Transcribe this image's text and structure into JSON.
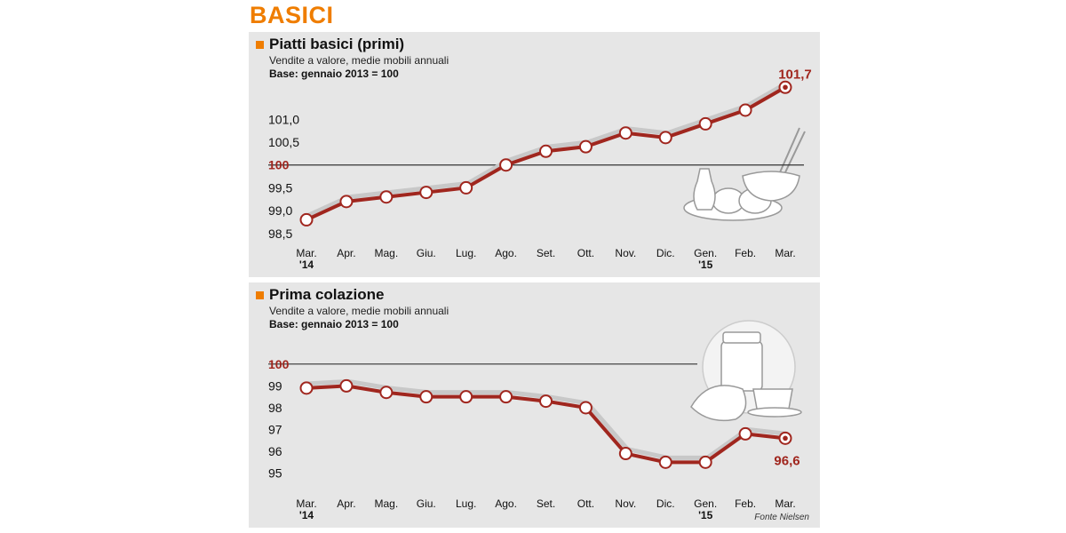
{
  "header": {
    "section": "BASICI"
  },
  "colors": {
    "accent": "#ef7d00",
    "line": "#a0261e",
    "highlight": "#a0261e",
    "panel_bg": "#e6e6e6",
    "shadow_line": "#c8c8c8"
  },
  "source": "Fonte Nielsen",
  "chart_data": [
    {
      "type": "line",
      "title": "Piatti basici (primi)",
      "subtitle": "Vendite a valore, medie mobili annuali",
      "note": "Base: gennaio 2013 = 100",
      "categories": [
        "Mar.",
        "Apr.",
        "Mag.",
        "Giu.",
        "Lug.",
        "Ago.",
        "Set.",
        "Ott.",
        "Nov.",
        "Dic.",
        "Gen.",
        "Feb.",
        "Mar."
      ],
      "year_labels": [
        "'14",
        "",
        "",
        "",
        "",
        "",
        "",
        "",
        "",
        "",
        "'15",
        "",
        ""
      ],
      "values": [
        98.8,
        99.2,
        99.3,
        99.4,
        99.5,
        100.0,
        100.3,
        100.4,
        100.7,
        100.6,
        100.9,
        101.2,
        101.7
      ],
      "ylim": [
        98.4,
        101.9
      ],
      "yticks": [
        {
          "value": 98.5,
          "label": "98,5"
        },
        {
          "value": 99.0,
          "label": "99,0"
        },
        {
          "value": 99.5,
          "label": "99,5"
        },
        {
          "value": 100.0,
          "label": "100"
        },
        {
          "value": 100.5,
          "label": "100,5"
        },
        {
          "value": 101.0,
          "label": "101,0"
        }
      ],
      "reference_value": 100,
      "end_label": "101,7",
      "grid": false,
      "icon": "pasta-oil-bowl-icon"
    },
    {
      "type": "line",
      "title": "Prima colazione",
      "subtitle": "Vendite a valore, medie mobili annuali",
      "note": "Base: gennaio 2013 = 100",
      "categories": [
        "Mar.",
        "Apr.",
        "Mag.",
        "Giu.",
        "Lug.",
        "Ago.",
        "Set.",
        "Ott.",
        "Nov.",
        "Dic.",
        "Gen.",
        "Feb.",
        "Mar."
      ],
      "year_labels": [
        "'14",
        "",
        "",
        "",
        "",
        "",
        "",
        "",
        "",
        "",
        "'15",
        "",
        ""
      ],
      "values": [
        98.9,
        99.0,
        98.7,
        98.5,
        98.5,
        98.5,
        98.3,
        98.0,
        95.9,
        95.5,
        95.5,
        96.8,
        96.6
      ],
      "ylim": [
        94.7,
        100.4
      ],
      "yticks": [
        {
          "value": 95,
          "label": "95"
        },
        {
          "value": 96,
          "label": "96"
        },
        {
          "value": 97,
          "label": "97"
        },
        {
          "value": 98,
          "label": "98"
        },
        {
          "value": 99,
          "label": "99"
        },
        {
          "value": 100,
          "label": "100"
        }
      ],
      "reference_value": 100,
      "end_label": "96,6",
      "grid": false,
      "icon": "breakfast-jam-croissant-coffee-icon"
    }
  ]
}
